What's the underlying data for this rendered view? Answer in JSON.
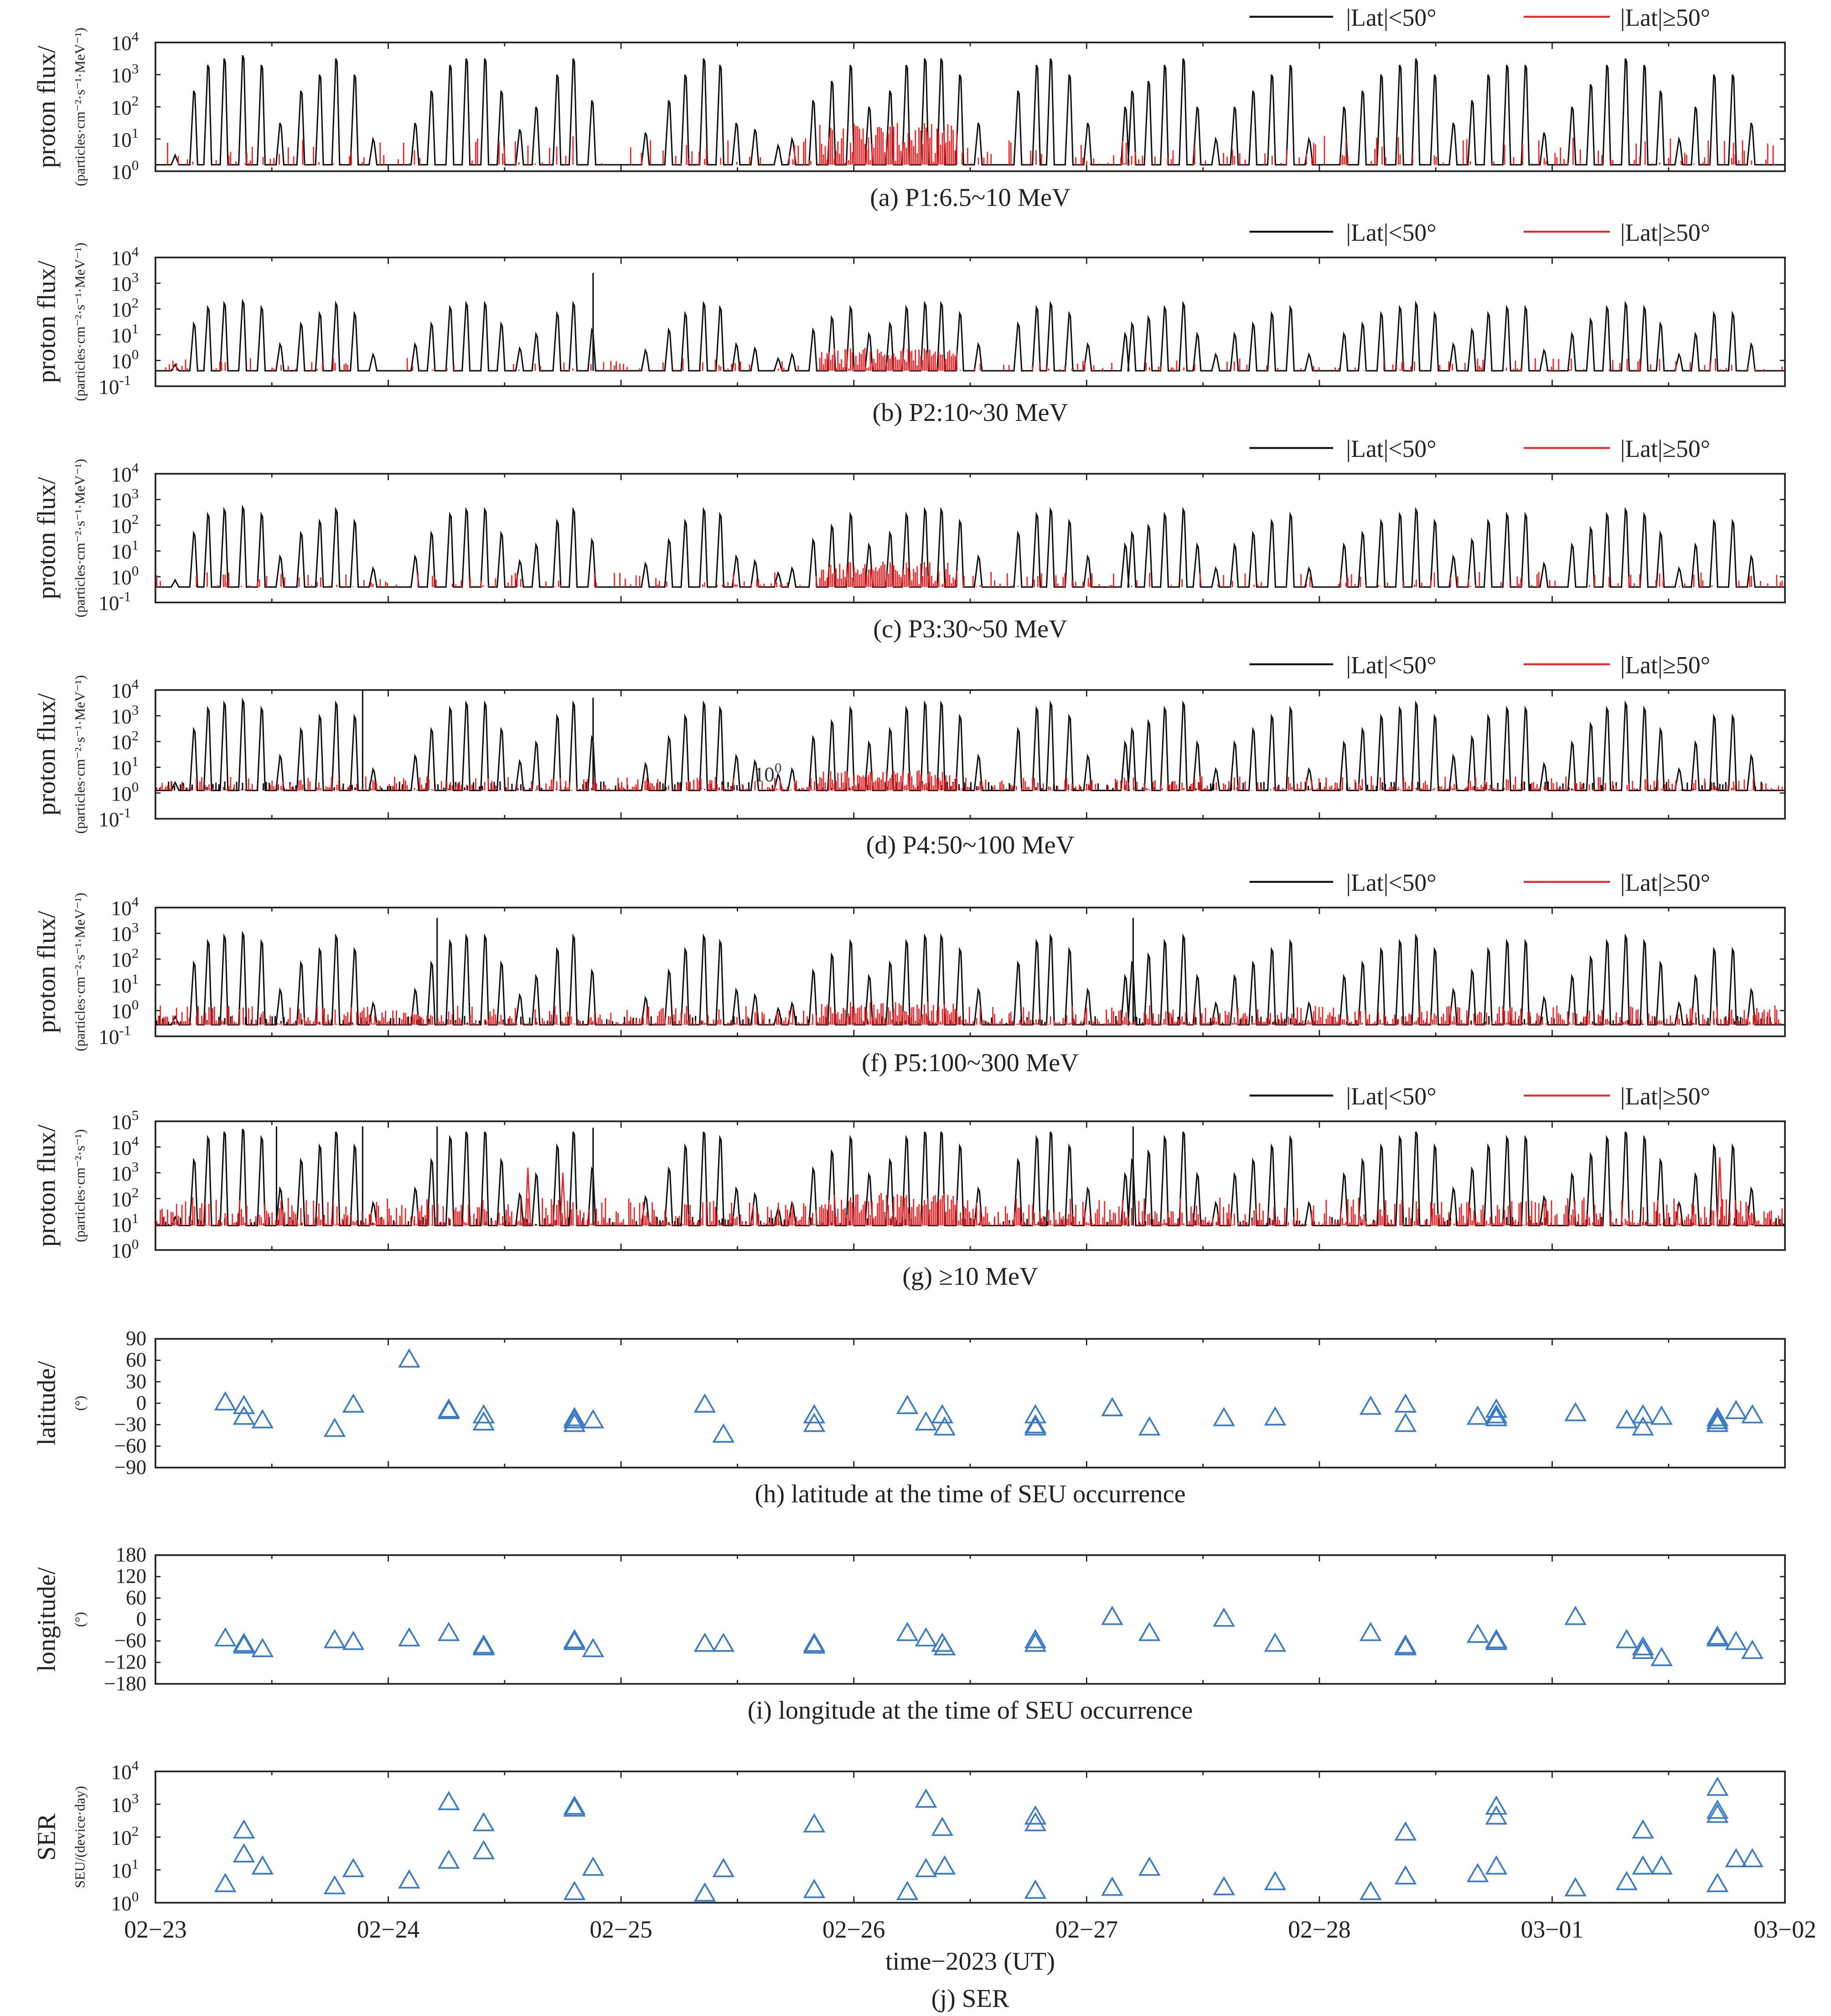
{
  "legend": {
    "low_lat": "|Lat|<50°",
    "high_lat": "|Lat|≥50°",
    "low_lat_color": "#111111",
    "high_lat_color": "#e8272a"
  },
  "x_axis": {
    "label": "time−2023 (UT)",
    "tick_labels": [
      "02−23",
      "02−24",
      "02−25",
      "02−26",
      "02−27",
      "02−28",
      "03−01",
      "03−02"
    ],
    "range_days": [
      0,
      7
    ]
  },
  "chart_data": [
    {
      "id": "a",
      "type": "line",
      "caption": "(a) P1:6.5~10 MeV",
      "ylabel": "proton flux/",
      "yunit": "(particles·cm⁻²·s⁻¹·MeV⁻¹)",
      "yscale": "log",
      "ylim_log10": [
        0,
        4
      ],
      "tick_exponents": [
        "0",
        "1",
        "2",
        "3",
        "4"
      ],
      "baseline_log10": 0.2,
      "peak_max_log10": 3.6,
      "extra_peaks": [],
      "high_lat_level_log10": 0.9,
      "high_lat_density": 0.3,
      "high_lat_bump": {
        "days": [
          2.85,
          3.45
        ],
        "level_log10": 1.3
      }
    },
    {
      "id": "b",
      "type": "line",
      "caption": "(b) P2:10~30 MeV",
      "ylabel": "proton flux/",
      "yunit": "(particles·cm⁻²·s⁻¹·MeV⁻¹)",
      "yscale": "log",
      "ylim_log10": [
        -1,
        4
      ],
      "tick_exponents": [
        "-1",
        "0",
        "1",
        "2",
        "3",
        "4"
      ],
      "baseline_log10": -0.4,
      "peak_max_log10": 2.3,
      "extra_peaks": [
        [
          1.88,
          3.4
        ]
      ],
      "high_lat_level_log10": 0.5,
      "high_lat_density": 0.25,
      "high_lat_bump": {
        "days": [
          2.85,
          3.45
        ],
        "level_log10": 0.9
      }
    },
    {
      "id": "c",
      "type": "line",
      "caption": "(c) P3:30~50 MeV",
      "ylabel": "proton flux/",
      "yunit": "(particles·cm⁻²·s⁻¹·MeV⁻¹)",
      "yscale": "log",
      "ylim_log10": [
        -1,
        4
      ],
      "tick_exponents": [
        "-1",
        "0",
        "1",
        "2",
        "3",
        "4"
      ],
      "baseline_log10": -0.4,
      "peak_max_log10": 2.7,
      "extra_peaks": [],
      "high_lat_level_log10": 0.6,
      "high_lat_density": 0.3,
      "high_lat_bump": {
        "days": [
          2.85,
          3.45
        ],
        "level_log10": 1.0
      }
    },
    {
      "id": "d",
      "type": "line",
      "caption": "(d) P4:50~100 MeV",
      "ylabel": "proton flux/",
      "yunit": "(particles·cm⁻²·s⁻¹·MeV⁻¹)",
      "yscale": "log",
      "ylim_log10": [
        -1,
        4
      ],
      "tick_exponents": [
        "-1",
        "0",
        "1",
        "2",
        "3",
        "4"
      ],
      "baseline_log10": 0.1,
      "peak_max_log10": 3.6,
      "extra_peaks": [
        [
          0.89,
          4.0
        ],
        [
          1.88,
          3.7
        ]
      ],
      "high_lat_level_log10": 0.55,
      "high_lat_density": 0.8,
      "high_lat_bump": {
        "days": [
          2.85,
          3.45
        ],
        "level_log10": 0.8
      },
      "annotation": {
        "base": "10",
        "exp": "0"
      }
    },
    {
      "id": "f",
      "type": "line",
      "caption": "(f) P5:100~300 MeV",
      "ylabel": "proton flux/",
      "yunit": "(particles·cm⁻²·s⁻¹·MeV⁻¹)",
      "yscale": "log",
      "ylim_log10": [
        -1,
        4
      ],
      "tick_exponents": [
        "-1",
        "0",
        "1",
        "2",
        "3",
        "4"
      ],
      "baseline_log10": -0.55,
      "peak_max_log10": 3.0,
      "extra_peaks": [
        [
          1.21,
          3.6
        ],
        [
          4.2,
          3.6
        ]
      ],
      "high_lat_level_log10": 0.75,
      "high_lat_density": 1.0,
      "high_lat_bump": {
        "days": [
          2.85,
          3.45
        ],
        "level_log10": 0.9
      }
    },
    {
      "id": "g",
      "type": "line",
      "caption": "(g) ≥10 MeV",
      "ylabel": "proton flux/",
      "yunit": "(particles·cm⁻²·s⁻¹)",
      "yscale": "log",
      "ylim_log10": [
        0,
        5
      ],
      "tick_exponents": [
        "0",
        "1",
        "2",
        "3",
        "4",
        "5"
      ],
      "baseline_log10": 0.95,
      "peak_max_log10": 4.7,
      "extra_peaks": [
        [
          0.52,
          4.8
        ],
        [
          0.89,
          4.8
        ],
        [
          1.21,
          4.8
        ],
        [
          1.88,
          4.75
        ],
        [
          4.2,
          4.8
        ]
      ],
      "high_lat_level_log10": 1.1,
      "high_lat_density": 1.0,
      "high_lat_bump": {
        "days": [
          2.85,
          3.45
        ],
        "level_log10": 1.3
      },
      "high_lat_extra_peaks": [
        [
          1.6,
          3.2
        ],
        [
          1.75,
          3.0
        ],
        [
          6.72,
          3.6
        ]
      ]
    }
  ],
  "saa_passes": {
    "days": [
      0.09,
      0.17,
      0.23,
      0.3,
      0.38,
      0.46,
      0.54,
      0.63,
      0.71,
      0.78,
      0.86,
      0.94,
      1.12,
      1.19,
      1.27,
      1.34,
      1.42,
      1.49,
      1.57,
      1.64,
      1.73,
      1.8,
      1.88,
      2.11,
      2.21,
      2.28,
      2.36,
      2.43,
      2.5,
      2.58,
      2.68,
      2.74,
      2.83,
      2.91,
      2.99,
      3.07,
      3.16,
      3.23,
      3.31,
      3.38,
      3.46,
      3.54,
      3.71,
      3.79,
      3.85,
      3.93,
      4.01,
      4.17,
      4.2,
      4.27,
      4.34,
      4.42,
      4.48,
      4.56,
      4.64,
      4.72,
      4.8,
      4.88,
      4.96,
      5.11,
      5.19,
      5.27,
      5.35,
      5.42,
      5.5,
      5.58,
      5.66,
      5.73,
      5.81,
      5.89,
      5.97,
      6.09,
      6.17,
      6.24,
      6.32,
      6.4,
      6.47,
      6.55,
      6.62,
      6.7,
      6.78,
      6.86
    ],
    "p1_peak_log10": [
      0.5,
      2.5,
      3.3,
      3.5,
      3.6,
      3.3,
      1.5,
      2.5,
      3.0,
      3.5,
      3.0,
      1.0,
      1.5,
      2.5,
      3.3,
      3.5,
      3.5,
      2.5,
      1.3,
      2.0,
      3.0,
      3.5,
      2.2,
      1.2,
      2.2,
      3.0,
      3.5,
      3.3,
      1.5,
      1.3,
      0.8,
      1.0,
      2.2,
      2.8,
      3.3,
      2.0,
      2.5,
      3.3,
      3.5,
      3.5,
      3.0,
      1.5,
      2.5,
      3.3,
      3.5,
      3.0,
      1.5,
      2.0,
      2.5,
      2.8,
      3.3,
      3.5,
      2.0,
      1.0,
      2.0,
      2.5,
      3.0,
      3.3,
      1.0,
      2.0,
      2.5,
      3.0,
      3.3,
      3.5,
      3.0,
      1.5,
      2.2,
      3.0,
      3.3,
      3.3,
      1.2,
      2.0,
      2.7,
      3.3,
      3.5,
      3.3,
      2.5,
      1.0,
      2.0,
      3.0,
      3.0,
      1.5
    ]
  },
  "seu": {
    "latitude": {
      "caption": "(h) latitude at the time of SEU occurrence",
      "ylabel": "latitude/",
      "yunit": "(°)",
      "ylim": [
        -90,
        90
      ],
      "ticks": [
        "90",
        "60",
        "30",
        "0",
        "−30",
        "−60",
        "−90"
      ],
      "points": [
        [
          0.3,
          0
        ],
        [
          0.38,
          -5
        ],
        [
          0.38,
          -20
        ],
        [
          0.46,
          -25
        ],
        [
          0.77,
          -37
        ],
        [
          0.85,
          -3
        ],
        [
          1.09,
          60
        ],
        [
          1.26,
          -10
        ],
        [
          1.26,
          -12
        ],
        [
          1.41,
          -18
        ],
        [
          1.41,
          -28
        ],
        [
          1.8,
          -25
        ],
        [
          1.8,
          -30
        ],
        [
          1.8,
          -22
        ],
        [
          1.88,
          -25
        ],
        [
          2.36,
          -3
        ],
        [
          2.44,
          -45
        ],
        [
          2.83,
          -18
        ],
        [
          2.83,
          -30
        ],
        [
          3.23,
          -5
        ],
        [
          3.31,
          -28
        ],
        [
          3.38,
          -18
        ],
        [
          3.39,
          -35
        ],
        [
          3.78,
          -18
        ],
        [
          3.78,
          -32
        ],
        [
          3.78,
          -35
        ],
        [
          4.11,
          -8
        ],
        [
          4.27,
          -35
        ],
        [
          4.59,
          -22
        ],
        [
          4.81,
          -21
        ],
        [
          5.22,
          -6
        ],
        [
          5.37,
          -3
        ],
        [
          5.37,
          -30
        ],
        [
          5.68,
          -20
        ],
        [
          5.76,
          -10
        ],
        [
          5.76,
          -22
        ],
        [
          5.76,
          -18
        ],
        [
          6.1,
          -15
        ],
        [
          6.32,
          -25
        ],
        [
          6.39,
          -18
        ],
        [
          6.39,
          -35
        ],
        [
          6.47,
          -20
        ],
        [
          6.71,
          -22
        ],
        [
          6.71,
          -30
        ],
        [
          6.71,
          -26
        ],
        [
          6.79,
          -12
        ],
        [
          6.86,
          -18
        ]
      ]
    },
    "longitude": {
      "caption": "(i) longitude at the time of SEU occurrence",
      "ylabel": "longitude/",
      "yunit": "(°)",
      "ylim": [
        -180,
        180
      ],
      "ticks": [
        "180",
        "120",
        "60",
        "0",
        "−60",
        "−120",
        "−180"
      ],
      "points": [
        [
          0.3,
          -55
        ],
        [
          0.38,
          -70
        ],
        [
          0.38,
          -75
        ],
        [
          0.46,
          -85
        ],
        [
          0.77,
          -60
        ],
        [
          0.85,
          -65
        ],
        [
          1.09,
          -55
        ],
        [
          1.26,
          -40
        ],
        [
          1.41,
          -75
        ],
        [
          1.41,
          -80
        ],
        [
          1.8,
          -60
        ],
        [
          1.8,
          -65
        ],
        [
          1.88,
          -85
        ],
        [
          2.36,
          -70
        ],
        [
          2.44,
          -70
        ],
        [
          2.83,
          -70
        ],
        [
          2.83,
          -75
        ],
        [
          3.23,
          -40
        ],
        [
          3.31,
          -55
        ],
        [
          3.38,
          -70
        ],
        [
          3.39,
          -80
        ],
        [
          3.78,
          -60
        ],
        [
          3.78,
          -70
        ],
        [
          4.11,
          5
        ],
        [
          4.27,
          -40
        ],
        [
          4.59,
          0
        ],
        [
          4.81,
          -70
        ],
        [
          5.22,
          -40
        ],
        [
          5.37,
          -75
        ],
        [
          5.37,
          -80
        ],
        [
          5.68,
          -45
        ],
        [
          5.76,
          -60
        ],
        [
          5.76,
          -65
        ],
        [
          6.1,
          5
        ],
        [
          6.32,
          -60
        ],
        [
          6.39,
          -80
        ],
        [
          6.39,
          -90
        ],
        [
          6.47,
          -110
        ],
        [
          6.71,
          -50
        ],
        [
          6.71,
          -55
        ],
        [
          6.79,
          -65
        ],
        [
          6.86,
          -90
        ]
      ]
    },
    "ser": {
      "caption": "(j) SER",
      "ylabel": "SER",
      "yunit": "SEU/(device·day)",
      "ylim_log10": [
        0,
        4
      ],
      "tick_exponents": [
        "0",
        "1",
        "2",
        "3",
        "4"
      ],
      "points": [
        [
          0.3,
          3.5
        ],
        [
          0.38,
          150
        ],
        [
          0.38,
          28
        ],
        [
          0.46,
          12
        ],
        [
          0.77,
          3
        ],
        [
          0.85,
          10
        ],
        [
          1.09,
          4.5
        ],
        [
          1.26,
          1100
        ],
        [
          1.26,
          18
        ],
        [
          1.41,
          250
        ],
        [
          1.41,
          35
        ],
        [
          1.8,
          700
        ],
        [
          1.8,
          800
        ],
        [
          1.8,
          2
        ],
        [
          1.88,
          11
        ],
        [
          2.36,
          1.8
        ],
        [
          2.44,
          10
        ],
        [
          2.83,
          2.3
        ],
        [
          2.83,
          230
        ],
        [
          3.23,
          2
        ],
        [
          3.31,
          1300
        ],
        [
          3.31,
          10
        ],
        [
          3.38,
          180
        ],
        [
          3.39,
          12
        ],
        [
          3.78,
          400
        ],
        [
          3.78,
          250
        ],
        [
          3.78,
          2.2
        ],
        [
          4.11,
          2.7
        ],
        [
          4.27,
          11
        ],
        [
          4.59,
          2.8
        ],
        [
          4.81,
          4
        ],
        [
          5.22,
          2
        ],
        [
          5.37,
          130
        ],
        [
          5.37,
          6
        ],
        [
          5.68,
          7
        ],
        [
          5.76,
          800
        ],
        [
          5.76,
          400
        ],
        [
          5.76,
          12
        ],
        [
          6.1,
          2.6
        ],
        [
          6.32,
          4
        ],
        [
          6.39,
          150
        ],
        [
          6.39,
          12
        ],
        [
          6.47,
          12
        ],
        [
          6.71,
          3000
        ],
        [
          6.71,
          600
        ],
        [
          6.71,
          450
        ],
        [
          6.71,
          3.5
        ],
        [
          6.79,
          20
        ],
        [
          6.86,
          20
        ]
      ]
    },
    "marker_color": "#3b7bc4"
  }
}
